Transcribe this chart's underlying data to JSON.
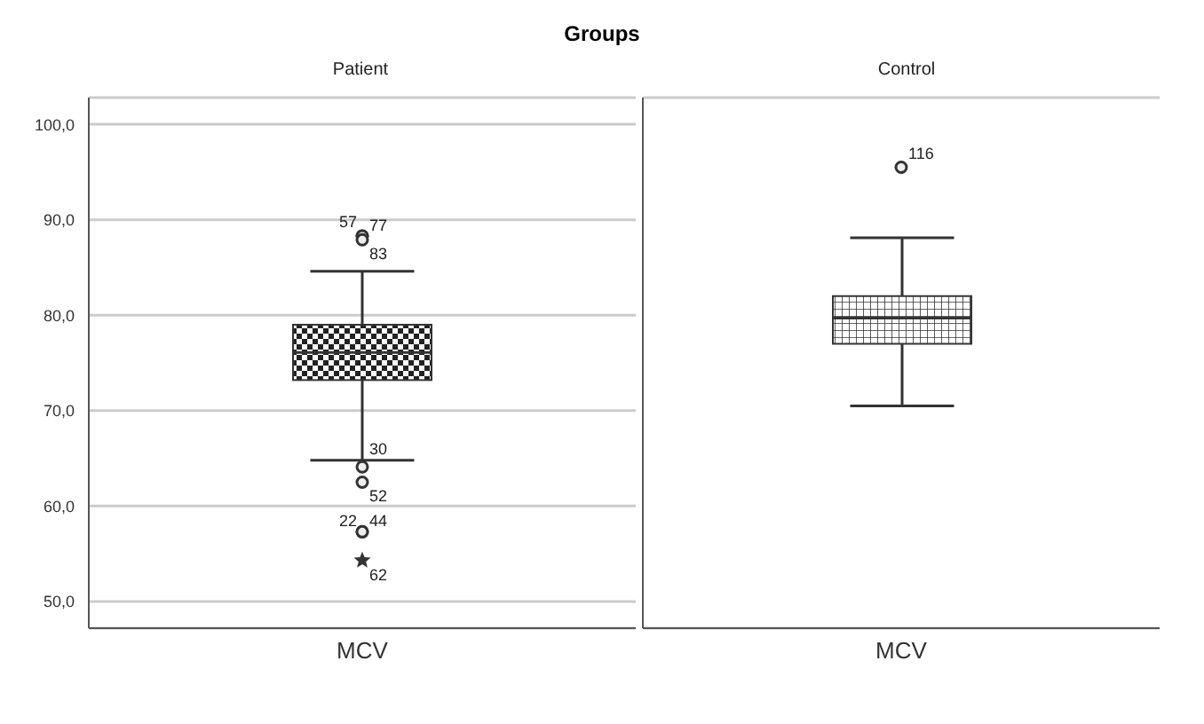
{
  "chart_data": [
    {
      "type": "box",
      "title": "Groups",
      "subtitle": "Patient",
      "categories": [
        "MCV"
      ],
      "color": "#333333",
      "grid": "y",
      "ylim": [
        47.2,
        102.8
      ],
      "yticks": [
        {
          "value": 50,
          "label": "50,0"
        },
        {
          "value": 60,
          "label": "60,0"
        },
        {
          "value": 70,
          "label": "70,0"
        },
        {
          "value": 80,
          "label": "80,0"
        },
        {
          "value": 90,
          "label": "90,0"
        },
        {
          "value": 100,
          "label": "100,0"
        }
      ],
      "boxes": [
        {
          "low": 64.8,
          "q1": 73.2,
          "median": 76.1,
          "q3": 79.0,
          "high": 84.6,
          "outliers": [
            88.3,
            88.3,
            87.9,
            64.1,
            62.5,
            57.3,
            57.3,
            54.3
          ]
        }
      ],
      "annotations": [
        "57",
        "77",
        "83",
        "30",
        "52",
        "22",
        "44",
        "62"
      ]
    },
    {
      "type": "box",
      "subtitle": "Control",
      "categories": [
        "MCV"
      ],
      "color": "#333333",
      "grid": "y",
      "tick_labels": "x",
      "ylim": [
        47.2,
        102.8
      ],
      "yticks": [
        {
          "value": 50,
          "label": null
        },
        {
          "value": 60,
          "label": null
        },
        {
          "value": 70,
          "label": null
        },
        {
          "value": 80,
          "label": null
        },
        {
          "value": 90,
          "label": null
        },
        {
          "value": 100,
          "label": null
        }
      ],
      "boxes": [
        {
          "low": 70.5,
          "q1": 77.0,
          "median": 79.7,
          "q3": 82.0,
          "high": 88.1,
          "outliers": [
            95.5
          ]
        }
      ],
      "annotations": [
        "116"
      ]
    }
  ]
}
